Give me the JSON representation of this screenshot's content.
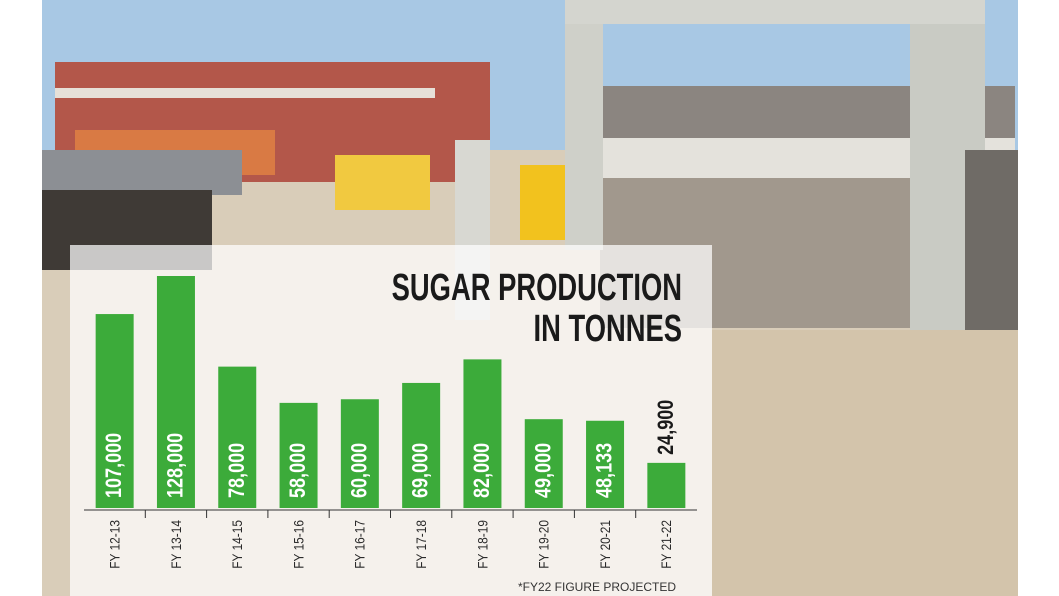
{
  "chart_data": {
    "type": "bar",
    "title": [
      "SUGAR PRODUCTION",
      "IN TONNES"
    ],
    "note": "*FY22 FIGURE PROJECTED",
    "categories": [
      "FY 12-13",
      "FY 13-14",
      "FY 14-15",
      "FY 15-16",
      "FY 16-17",
      "FY 17-18",
      "FY 18-19",
      "FY 19-20",
      "FY 20-21",
      "FY 21-22"
    ],
    "values": [
      107000,
      128000,
      78000,
      58000,
      60000,
      69000,
      82000,
      49000,
      48133,
      24900
    ],
    "value_labels": [
      "107,000",
      "128,000",
      "78,000",
      "58,000",
      "60,000",
      "69,000",
      "82,000",
      "49,000",
      "48,133",
      "24,900"
    ],
    "color": "#3cab3a"
  }
}
